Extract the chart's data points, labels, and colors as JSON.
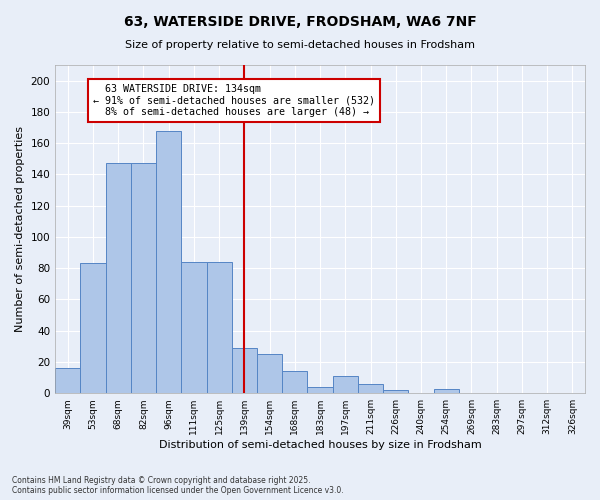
{
  "title1": "63, WATERSIDE DRIVE, FRODSHAM, WA6 7NF",
  "title2": "Size of property relative to semi-detached houses in Frodsham",
  "xlabel": "Distribution of semi-detached houses by size in Frodsham",
  "ylabel": "Number of semi-detached properties",
  "bar_labels": [
    "39sqm",
    "53sqm",
    "68sqm",
    "82sqm",
    "96sqm",
    "111sqm",
    "125sqm",
    "139sqm",
    "154sqm",
    "168sqm",
    "183sqm",
    "197sqm",
    "211sqm",
    "226sqm",
    "240sqm",
    "254sqm",
    "269sqm",
    "283sqm",
    "297sqm",
    "312sqm",
    "326sqm"
  ],
  "bar_values": [
    16,
    83,
    147,
    147,
    168,
    84,
    84,
    29,
    25,
    14,
    4,
    11,
    6,
    2,
    0,
    3,
    0,
    0,
    0,
    0,
    0
  ],
  "bar_color": "#aec6e8",
  "bar_edge_color": "#5585c5",
  "annotation_box_color": "#cc0000",
  "background_color": "#e8eef8",
  "grid_color": "#ffffff",
  "property_label": "63 WATERSIDE DRIVE: 134sqm",
  "pct_smaller": 91,
  "count_smaller": 532,
  "pct_larger": 8,
  "count_larger": 48,
  "vline_x_index": 7,
  "footer": "Contains HM Land Registry data © Crown copyright and database right 2025.\nContains public sector information licensed under the Open Government Licence v3.0.",
  "ylim": [
    0,
    210
  ],
  "yticks": [
    0,
    20,
    40,
    60,
    80,
    100,
    120,
    140,
    160,
    180,
    200
  ]
}
